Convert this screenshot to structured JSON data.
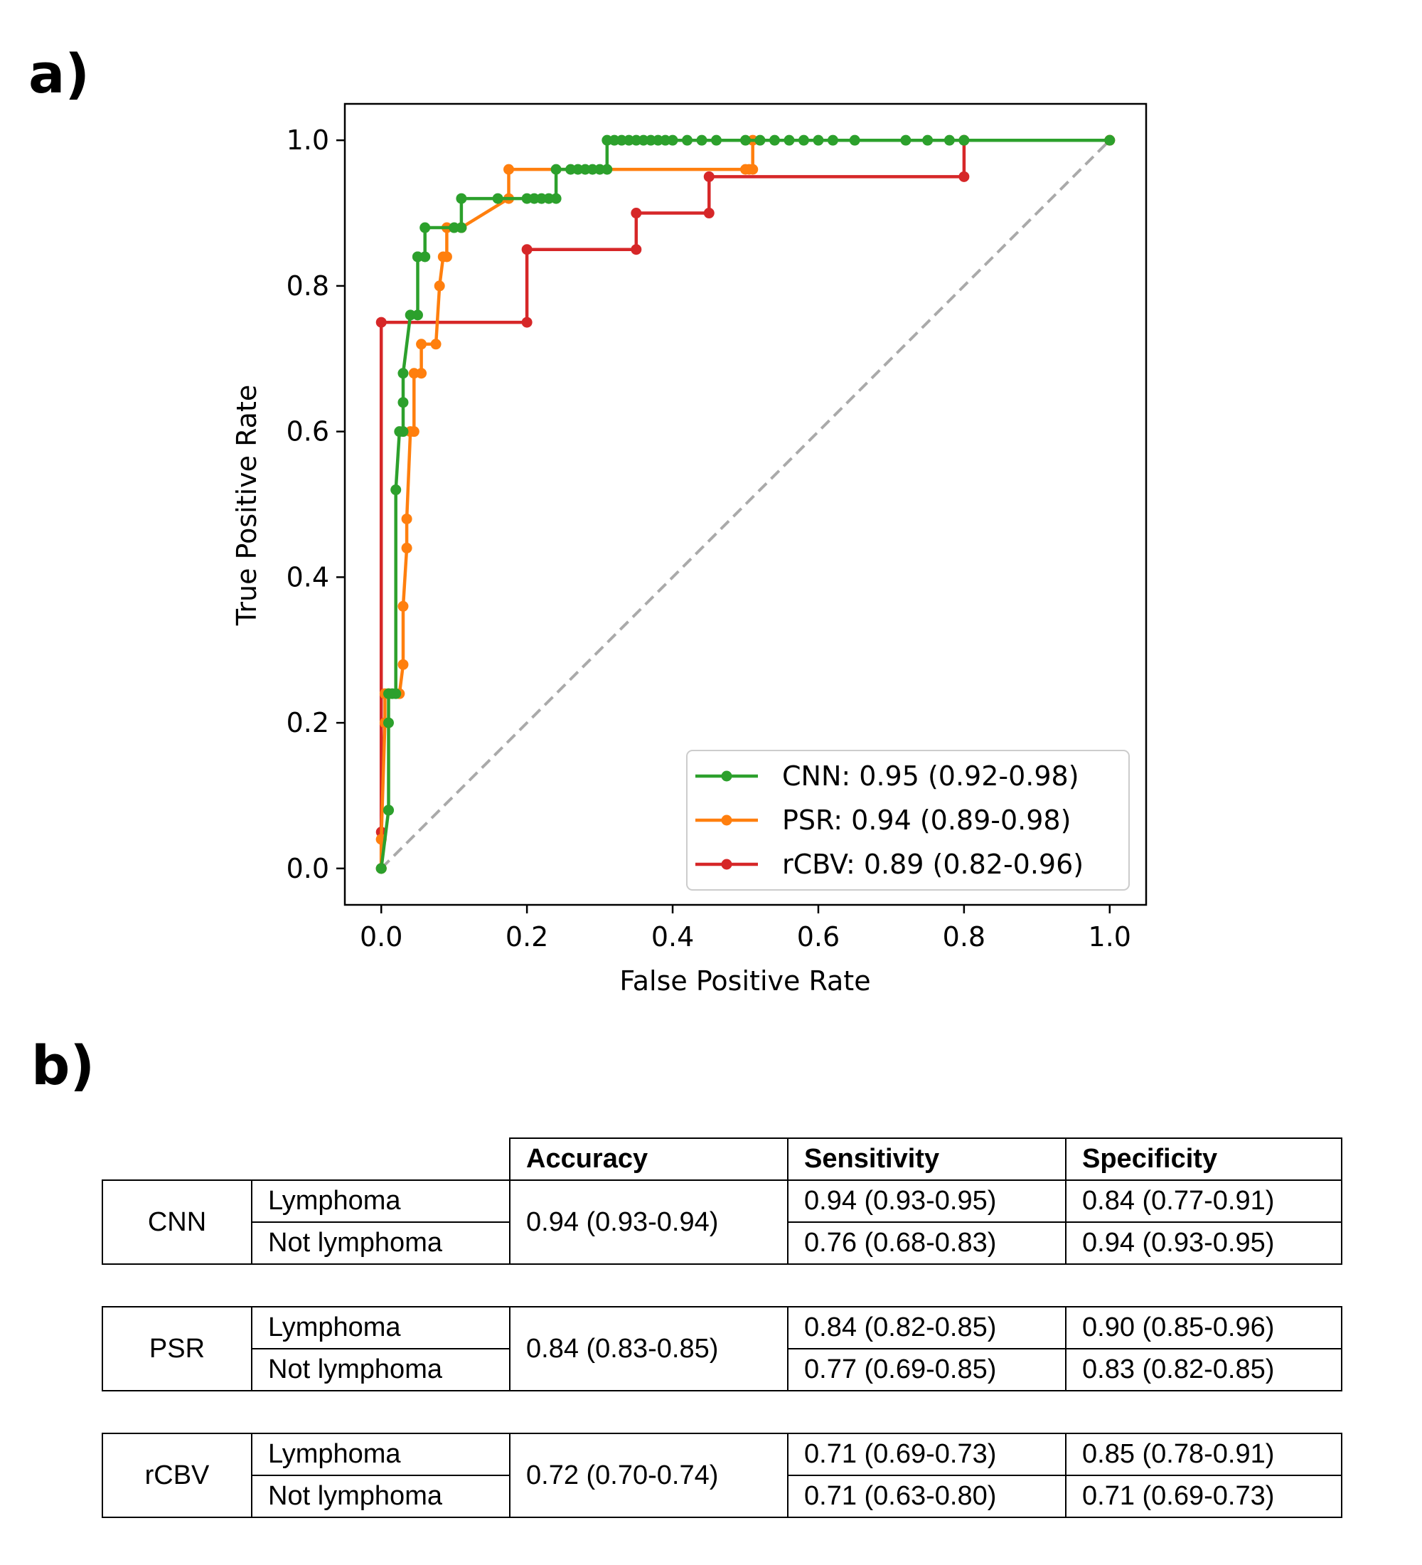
{
  "panel_labels": {
    "a": "a)",
    "b": "b)"
  },
  "chart_data": {
    "type": "line",
    "title": "",
    "xlabel": "False Positive Rate",
    "ylabel": "True Positive Rate",
    "xlim": [
      -0.05,
      1.05
    ],
    "ylim": [
      -0.05,
      1.05
    ],
    "xticks": [
      0.0,
      0.2,
      0.4,
      0.6,
      0.8,
      1.0
    ],
    "yticks": [
      0.0,
      0.2,
      0.4,
      0.6,
      0.8,
      1.0
    ],
    "xtick_labels": [
      "0.0",
      "0.2",
      "0.4",
      "0.6",
      "0.8",
      "1.0"
    ],
    "ytick_labels": [
      "0.0",
      "0.2",
      "0.4",
      "0.6",
      "0.8",
      "1.0"
    ],
    "legend_position": "lower-right",
    "diagonal": {
      "x": [
        0,
        1
      ],
      "y": [
        0,
        1
      ],
      "style": "dashed",
      "color": "#aaaaaa"
    },
    "series": [
      {
        "name": "CNN: 0.95 (0.92-0.98)",
        "color": "#2ca02c",
        "x": [
          0.0,
          0.0,
          0.01,
          0.01,
          0.01,
          0.01,
          0.015,
          0.02,
          0.02,
          0.025,
          0.03,
          0.03,
          0.03,
          0.04,
          0.05,
          0.05,
          0.05,
          0.06,
          0.06,
          0.1,
          0.11,
          0.11,
          0.16,
          0.2,
          0.21,
          0.22,
          0.23,
          0.24,
          0.24,
          0.26,
          0.27,
          0.28,
          0.29,
          0.3,
          0.31,
          0.31,
          0.32,
          0.33,
          0.34,
          0.35,
          0.36,
          0.37,
          0.38,
          0.39,
          0.4,
          0.42,
          0.44,
          0.46,
          0.5,
          0.52,
          0.54,
          0.56,
          0.58,
          0.6,
          0.62,
          0.65,
          0.72,
          0.75,
          0.78,
          0.8,
          1.0
        ],
        "y": [
          0.0,
          0.0,
          0.08,
          0.08,
          0.2,
          0.24,
          0.24,
          0.24,
          0.52,
          0.6,
          0.6,
          0.64,
          0.68,
          0.76,
          0.76,
          0.84,
          0.84,
          0.84,
          0.88,
          0.88,
          0.88,
          0.92,
          0.92,
          0.92,
          0.92,
          0.92,
          0.92,
          0.92,
          0.96,
          0.96,
          0.96,
          0.96,
          0.96,
          0.96,
          0.96,
          1.0,
          1.0,
          1.0,
          1.0,
          1.0,
          1.0,
          1.0,
          1.0,
          1.0,
          1.0,
          1.0,
          1.0,
          1.0,
          1.0,
          1.0,
          1.0,
          1.0,
          1.0,
          1.0,
          1.0,
          1.0,
          1.0,
          1.0,
          1.0,
          1.0,
          1.0
        ]
      },
      {
        "name": "PSR: 0.94 (0.89-0.98)",
        "color": "#ff7f0e",
        "x": [
          0.0,
          0.0,
          0.0,
          0.005,
          0.005,
          0.01,
          0.025,
          0.03,
          0.03,
          0.035,
          0.035,
          0.04,
          0.045,
          0.045,
          0.055,
          0.055,
          0.075,
          0.08,
          0.085,
          0.09,
          0.09,
          0.11,
          0.175,
          0.175,
          0.5,
          0.505,
          0.51,
          0.51,
          1.0
        ],
        "y": [
          0.0,
          0.04,
          0.04,
          0.2,
          0.24,
          0.24,
          0.24,
          0.28,
          0.36,
          0.44,
          0.48,
          0.6,
          0.6,
          0.68,
          0.68,
          0.72,
          0.72,
          0.8,
          0.84,
          0.84,
          0.88,
          0.88,
          0.92,
          0.96,
          0.96,
          0.96,
          0.96,
          1.0,
          1.0
        ]
      },
      {
        "name": "rCBV: 0.89 (0.82-0.96)",
        "color": "#d62728",
        "x": [
          0.0,
          0.0,
          0.0,
          0.2,
          0.2,
          0.35,
          0.35,
          0.45,
          0.45,
          0.8,
          0.8,
          1.0
        ],
        "y": [
          0.0,
          0.05,
          0.75,
          0.75,
          0.85,
          0.85,
          0.9,
          0.9,
          0.95,
          0.95,
          1.0,
          1.0
        ]
      }
    ]
  },
  "table": {
    "headers": [
      "Accuracy",
      "Sensitivity",
      "Specificity"
    ],
    "groups": [
      {
        "model": "CNN",
        "accuracy": "0.94 (0.93-0.94)",
        "rows": [
          {
            "label": "Lymphoma",
            "sensitivity": "0.94 (0.93-0.95)",
            "specificity": "0.84 (0.77-0.91)"
          },
          {
            "label": "Not lymphoma",
            "sensitivity": "0.76 (0.68-0.83)",
            "specificity": "0.94 (0.93-0.95)"
          }
        ]
      },
      {
        "model": "PSR",
        "accuracy": "0.84 (0.83-0.85)",
        "rows": [
          {
            "label": "Lymphoma",
            "sensitivity": "0.84 (0.82-0.85)",
            "specificity": "0.90 (0.85-0.96)"
          },
          {
            "label": "Not lymphoma",
            "sensitivity": "0.77 (0.69-0.85)",
            "specificity": "0.83 (0.82-0.85)"
          }
        ]
      },
      {
        "model": "rCBV",
        "accuracy": "0.72 (0.70-0.74)",
        "rows": [
          {
            "label": "Lymphoma",
            "sensitivity": "0.71 (0.69-0.73)",
            "specificity": "0.85 (0.78-0.91)"
          },
          {
            "label": "Not lymphoma",
            "sensitivity": "0.71 (0.63-0.80)",
            "specificity": "0.71 (0.69-0.73)"
          }
        ]
      }
    ]
  }
}
